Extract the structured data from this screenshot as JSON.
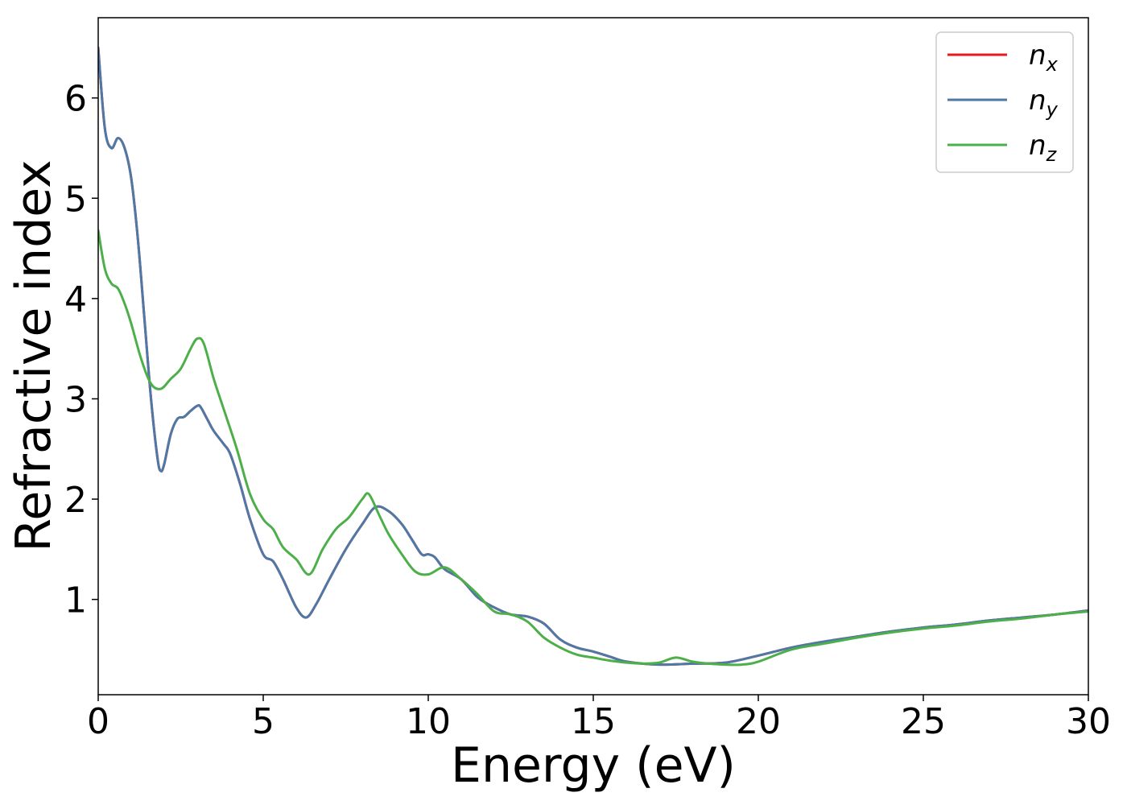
{
  "chart_data": {
    "type": "line",
    "title": "",
    "xlabel": "Energy (eV)",
    "ylabel": "Refractive index",
    "xlim": [
      0,
      30
    ],
    "ylim": [
      0.05,
      6.8
    ],
    "xticks": [
      0,
      5,
      10,
      15,
      20,
      25,
      30
    ],
    "yticks": [
      1,
      2,
      3,
      4,
      5,
      6
    ],
    "grid": false,
    "legend_position": "top-right",
    "series": [
      {
        "name": "n_x",
        "label_base": "n",
        "label_sub": "x",
        "color": "#e41a1c",
        "x": [
          0,
          0.2,
          0.4,
          0.6,
          0.8,
          1.0,
          1.2,
          1.4,
          1.6,
          1.8,
          1.9,
          2.0,
          2.2,
          2.4,
          2.6,
          2.8,
          3.0,
          3.1,
          3.3,
          3.5,
          3.8,
          4.0,
          4.3,
          4.6,
          5.0,
          5.3,
          5.6,
          6.0,
          6.3,
          6.6,
          7.0,
          7.5,
          8.0,
          8.4,
          8.8,
          9.2,
          9.5,
          9.8,
          10.0,
          10.2,
          10.5,
          11.0,
          11.5,
          12.0,
          12.5,
          13.0,
          13.5,
          14.0,
          14.5,
          15.0,
          15.5,
          16.0,
          17.0,
          18.0,
          19.0,
          20.0,
          21.0,
          22.0,
          23.0,
          24.0,
          25.0,
          26.0,
          27.0,
          28.0,
          29.0,
          30.0
        ],
        "y": [
          6.5,
          5.7,
          5.5,
          5.6,
          5.5,
          5.2,
          4.6,
          3.8,
          3.0,
          2.4,
          2.28,
          2.35,
          2.65,
          2.8,
          2.82,
          2.88,
          2.93,
          2.92,
          2.8,
          2.68,
          2.55,
          2.45,
          2.15,
          1.8,
          1.45,
          1.38,
          1.2,
          0.92,
          0.82,
          0.95,
          1.2,
          1.5,
          1.75,
          1.92,
          1.88,
          1.75,
          1.6,
          1.45,
          1.45,
          1.42,
          1.3,
          1.2,
          1.02,
          0.92,
          0.85,
          0.83,
          0.76,
          0.6,
          0.52,
          0.48,
          0.43,
          0.38,
          0.35,
          0.36,
          0.37,
          0.44,
          0.52,
          0.58,
          0.63,
          0.68,
          0.72,
          0.75,
          0.79,
          0.82,
          0.85,
          0.89
        ]
      },
      {
        "name": "n_y",
        "label_base": "n",
        "label_sub": "y",
        "color": "#4e79a7",
        "x": [
          0,
          0.2,
          0.4,
          0.6,
          0.8,
          1.0,
          1.2,
          1.4,
          1.6,
          1.8,
          1.9,
          2.0,
          2.2,
          2.4,
          2.6,
          2.8,
          3.0,
          3.1,
          3.3,
          3.5,
          3.8,
          4.0,
          4.3,
          4.6,
          5.0,
          5.3,
          5.6,
          6.0,
          6.3,
          6.6,
          7.0,
          7.5,
          8.0,
          8.4,
          8.8,
          9.2,
          9.5,
          9.8,
          10.0,
          10.2,
          10.5,
          11.0,
          11.5,
          12.0,
          12.5,
          13.0,
          13.5,
          14.0,
          14.5,
          15.0,
          15.5,
          16.0,
          17.0,
          18.0,
          19.0,
          20.0,
          21.0,
          22.0,
          23.0,
          24.0,
          25.0,
          26.0,
          27.0,
          28.0,
          29.0,
          30.0
        ],
        "y": [
          6.5,
          5.7,
          5.5,
          5.6,
          5.5,
          5.2,
          4.6,
          3.8,
          3.0,
          2.4,
          2.28,
          2.35,
          2.65,
          2.8,
          2.82,
          2.88,
          2.93,
          2.92,
          2.8,
          2.68,
          2.55,
          2.45,
          2.15,
          1.8,
          1.45,
          1.38,
          1.2,
          0.92,
          0.82,
          0.95,
          1.2,
          1.5,
          1.75,
          1.92,
          1.88,
          1.75,
          1.6,
          1.45,
          1.45,
          1.42,
          1.3,
          1.2,
          1.02,
          0.92,
          0.85,
          0.83,
          0.76,
          0.6,
          0.52,
          0.48,
          0.43,
          0.38,
          0.35,
          0.36,
          0.37,
          0.44,
          0.52,
          0.58,
          0.63,
          0.68,
          0.72,
          0.75,
          0.79,
          0.82,
          0.85,
          0.89
        ]
      },
      {
        "name": "n_z",
        "label_base": "n",
        "label_sub": "z",
        "color": "#4daf4a",
        "x": [
          0,
          0.2,
          0.4,
          0.6,
          0.8,
          1.0,
          1.3,
          1.6,
          1.9,
          2.2,
          2.5,
          2.8,
          3.0,
          3.2,
          3.5,
          3.8,
          4.2,
          4.6,
          5.0,
          5.3,
          5.6,
          6.0,
          6.4,
          6.8,
          7.2,
          7.6,
          8.0,
          8.2,
          8.5,
          8.8,
          9.2,
          9.6,
          10.0,
          10.5,
          11.0,
          11.5,
          12.0,
          12.5,
          13.0,
          13.5,
          14.0,
          14.5,
          15.0,
          15.5,
          16.0,
          16.5,
          17.0,
          17.5,
          18.0,
          18.5,
          19.0,
          19.5,
          20.0,
          21.0,
          22.0,
          23.0,
          24.0,
          25.0,
          26.0,
          27.0,
          28.0,
          29.0,
          30.0
        ],
        "y": [
          4.68,
          4.3,
          4.15,
          4.1,
          3.95,
          3.75,
          3.4,
          3.15,
          3.1,
          3.2,
          3.3,
          3.5,
          3.6,
          3.55,
          3.2,
          2.9,
          2.5,
          2.05,
          1.8,
          1.7,
          1.52,
          1.4,
          1.25,
          1.5,
          1.7,
          1.82,
          2.0,
          2.05,
          1.85,
          1.65,
          1.45,
          1.28,
          1.25,
          1.32,
          1.2,
          1.05,
          0.88,
          0.85,
          0.78,
          0.62,
          0.52,
          0.45,
          0.42,
          0.39,
          0.37,
          0.36,
          0.37,
          0.42,
          0.38,
          0.36,
          0.35,
          0.35,
          0.38,
          0.5,
          0.56,
          0.62,
          0.67,
          0.71,
          0.74,
          0.78,
          0.81,
          0.85,
          0.88
        ]
      }
    ]
  }
}
